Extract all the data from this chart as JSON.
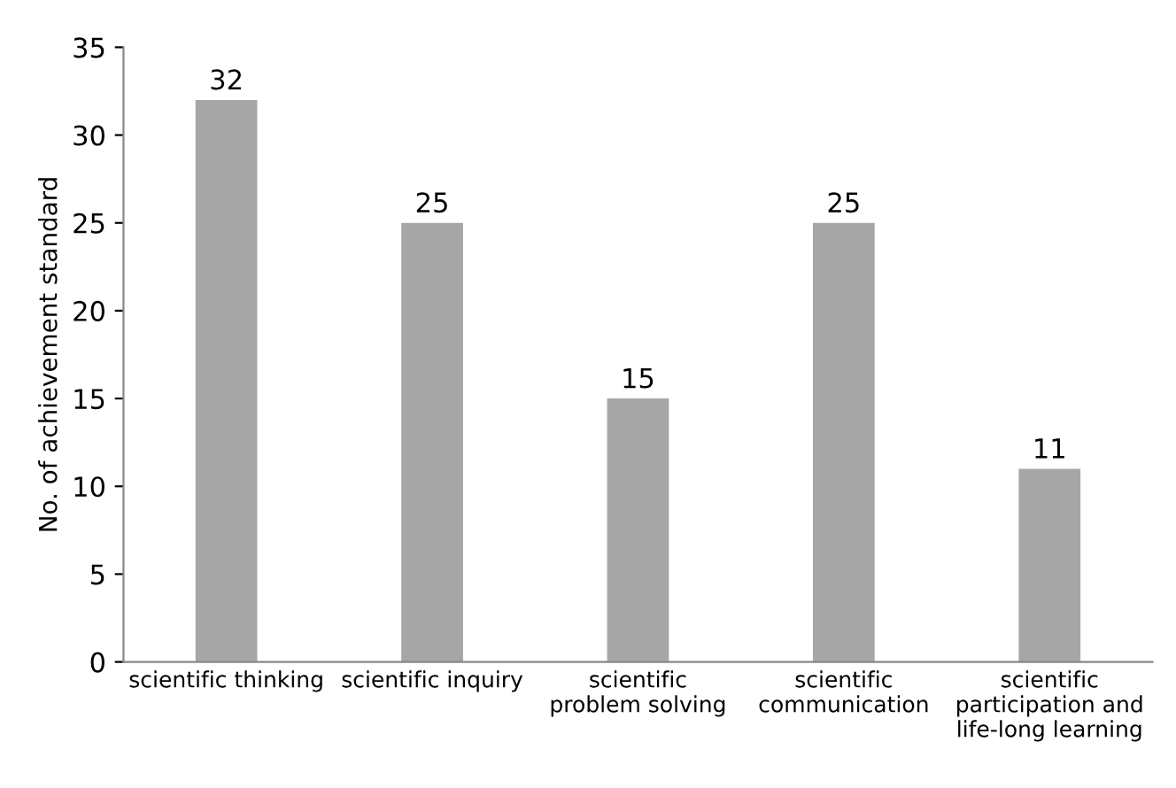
{
  "chart_data": {
    "type": "bar",
    "ylabel": "No. of achievement standard",
    "categories": [
      "scientific thinking",
      "scientific inquiry",
      "scientific\nproblem solving",
      "scientific\ncommunication",
      "scientific\nparticipation and\nlife-long learning"
    ],
    "values": [
      32,
      25,
      15,
      25,
      11
    ],
    "color": "#a6a6a6",
    "ylim": [
      0,
      35
    ],
    "yticks": [
      0,
      5,
      10,
      15,
      20,
      25,
      30,
      35
    ],
    "grid": false,
    "data_labels": true
  }
}
